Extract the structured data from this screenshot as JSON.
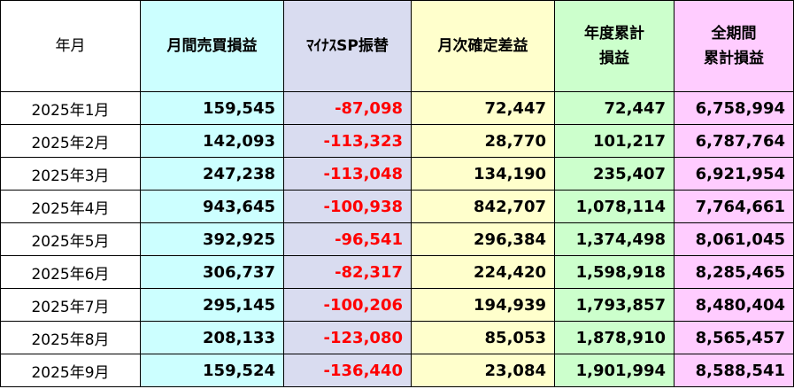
{
  "headers": {
    "month": "年月",
    "trade": "月間売買損益",
    "swap": "ﾏｲﾅｽSP振替",
    "diff": "月次確定差益",
    "year_line1": "年度累計",
    "year_line2": "損益",
    "total_line1": "全期間",
    "total_line2": "累計損益"
  },
  "rows": [
    {
      "month": "2025年1月",
      "trade": "159,545",
      "swap": "-87,098",
      "diff": "72,447",
      "year": "72,447",
      "total": "6,758,994"
    },
    {
      "month": "2025年2月",
      "trade": "142,093",
      "swap": "-113,323",
      "diff": "28,770",
      "year": "101,217",
      "total": "6,787,764"
    },
    {
      "month": "2025年3月",
      "trade": "247,238",
      "swap": "-113,048",
      "diff": "134,190",
      "year": "235,407",
      "total": "6,921,954"
    },
    {
      "month": "2025年4月",
      "trade": "943,645",
      "swap": "-100,938",
      "diff": "842,707",
      "year": "1,078,114",
      "total": "7,764,661"
    },
    {
      "month": "2025年5月",
      "trade": "392,925",
      "swap": "-96,541",
      "diff": "296,384",
      "year": "1,374,498",
      "total": "8,061,045"
    },
    {
      "month": "2025年6月",
      "trade": "306,737",
      "swap": "-82,317",
      "diff": "224,420",
      "year": "1,598,918",
      "total": "8,285,465"
    },
    {
      "month": "2025年7月",
      "trade": "295,145",
      "swap": "-100,206",
      "diff": "194,939",
      "year": "1,793,857",
      "total": "8,480,404"
    },
    {
      "month": "2025年8月",
      "trade": "208,133",
      "swap": "-123,080",
      "diff": "85,053",
      "year": "1,878,910",
      "total": "8,565,457"
    },
    {
      "month": "2025年9月",
      "trade": "159,524",
      "swap": "-136,440",
      "diff": "23,084",
      "year": "1,901,994",
      "total": "8,588,541"
    }
  ],
  "colors": {
    "month": "#ffffff",
    "trade": "#ccffff",
    "swap": "#d9dcf0",
    "diff": "#ffffcc",
    "year": "#ccffcc",
    "total": "#ffccff",
    "negative_text": "#ff0000"
  }
}
